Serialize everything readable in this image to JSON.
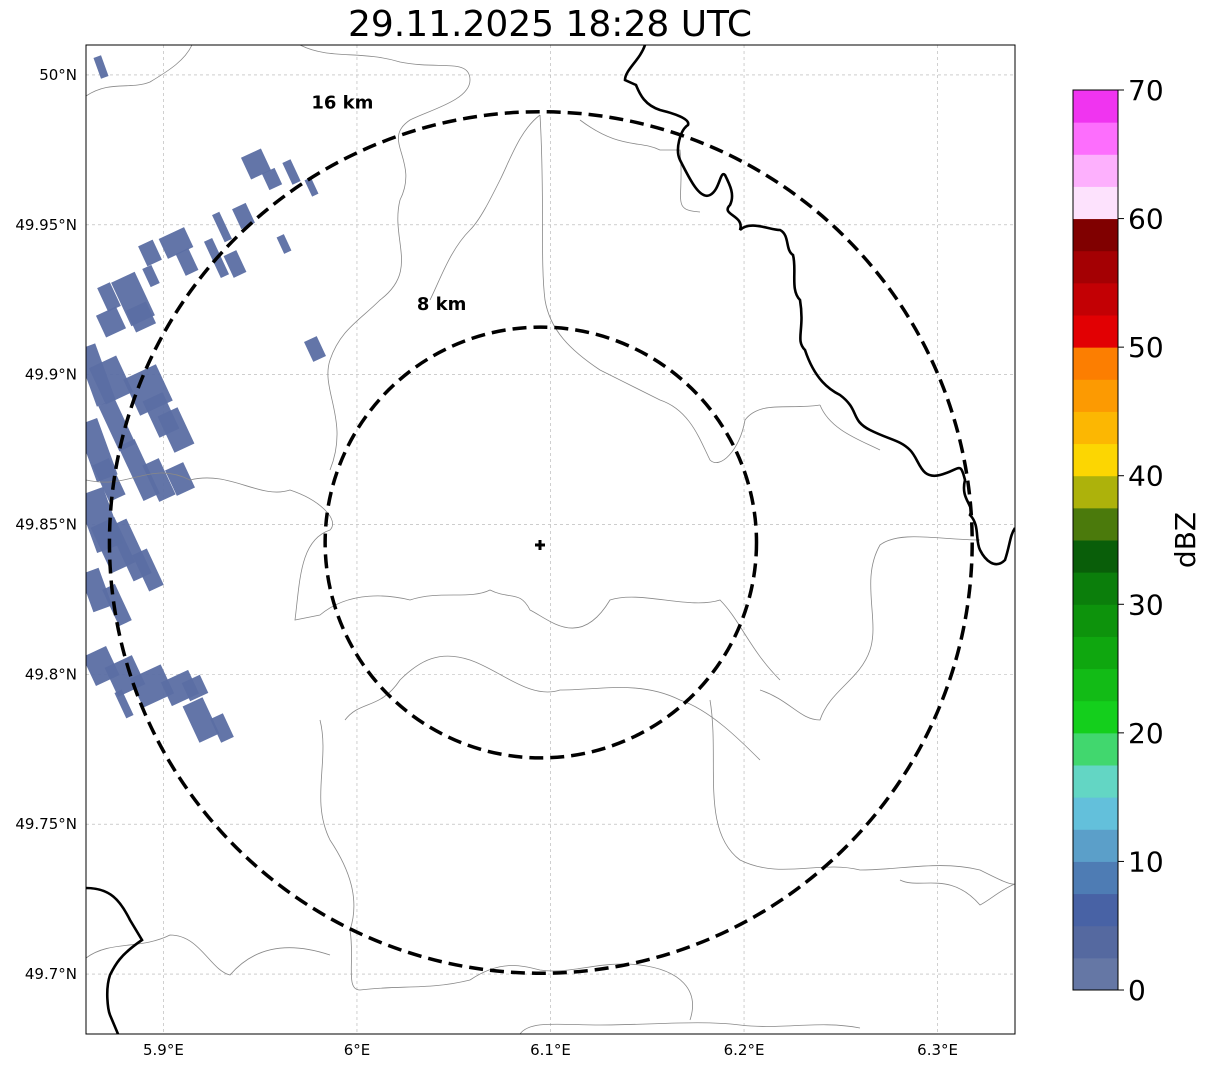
{
  "title": "29.11.2025 18:28 UTC",
  "map": {
    "lon_range": [
      5.86,
      6.34
    ],
    "lat_range": [
      49.68,
      50.01
    ],
    "lon_ticks": [
      {
        "value": 5.9,
        "label": "5.9°E"
      },
      {
        "value": 6.0,
        "label": "6°E"
      },
      {
        "value": 6.1,
        "label": "6.1°E"
      },
      {
        "value": 6.2,
        "label": "6.2°E"
      },
      {
        "value": 6.3,
        "label": "6.3°E"
      }
    ],
    "lat_ticks": [
      {
        "value": 50.0,
        "label": "50°N"
      },
      {
        "value": 49.95,
        "label": "49.95°N"
      },
      {
        "value": 49.9,
        "label": "49.9°N"
      },
      {
        "value": 49.85,
        "label": "49.85°N"
      },
      {
        "value": 49.8,
        "label": "49.8°N"
      },
      {
        "value": 49.75,
        "label": "49.75°N"
      },
      {
        "value": 49.7,
        "label": "49.7°N"
      }
    ],
    "gridlines": true,
    "radar_site": {
      "lon": 6.095,
      "lat": 49.844
    },
    "range_rings": [
      {
        "km": 8,
        "label": "8 km"
      },
      {
        "km": 16,
        "label": "16 km"
      }
    ],
    "echo_color": "#5b6ea3"
  },
  "colorbar": {
    "label": "dBZ",
    "min": 0,
    "max": 70,
    "ticks": [
      "0",
      "10",
      "20",
      "30",
      "40",
      "50",
      "60",
      "70"
    ],
    "colors": [
      "#6577a5",
      "#5569a0",
      "#4862a5",
      "#4e7cb4",
      "#5b9fc9",
      "#63c0db",
      "#63d6c4",
      "#41d76e",
      "#14cf1c",
      "#12bb16",
      "#0fa70f",
      "#0d930c",
      "#0b7e0b",
      "#095e09",
      "#4b7a0c",
      "#adb20b",
      "#fcd602",
      "#fcb702",
      "#fc9a02",
      "#fc7e01",
      "#e20003",
      "#c30004",
      "#a40003",
      "#800000",
      "#fde2fd",
      "#fdb0fd",
      "#fd6efd",
      "#f034f0"
    ]
  }
}
